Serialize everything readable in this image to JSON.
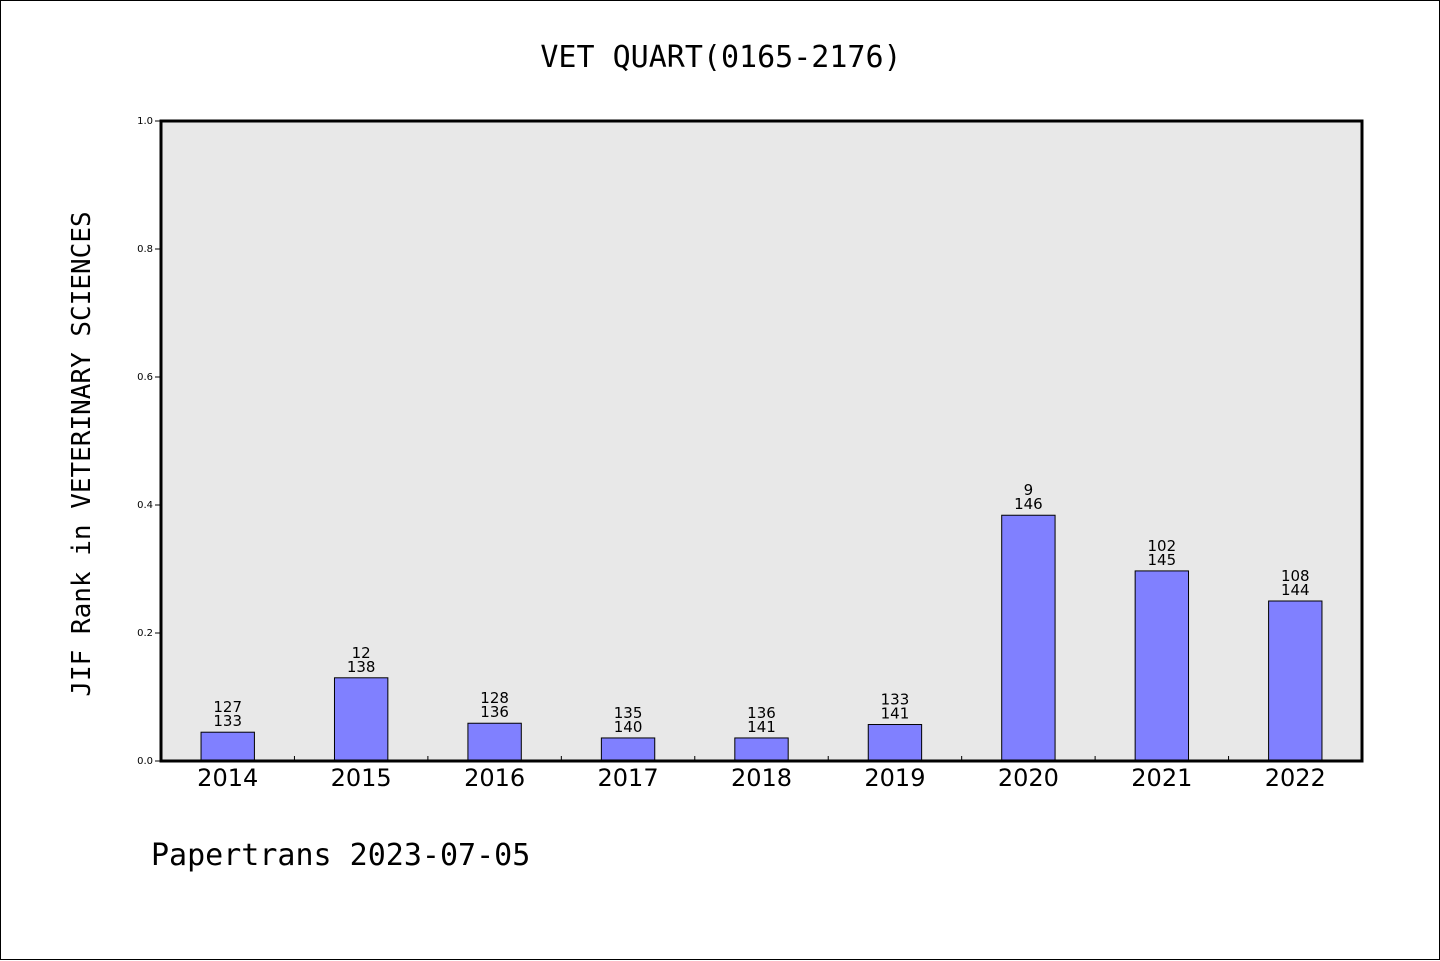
{
  "colors": {
    "bar_fill": "#8080ff",
    "bar_stroke": "#000000",
    "plot_bg": "#e8e8e8",
    "axis": "#000000"
  },
  "chart_data": {
    "type": "bar",
    "title": "VET QUART(0165-2176)",
    "xlabel": "",
    "ylabel": "JIF Rank in VETERINARY SCIENCES",
    "ylim": [
      0,
      1.0
    ],
    "yticks": [
      0.0,
      0.2,
      0.4,
      0.6,
      0.8,
      1.0
    ],
    "ytick_labels": [
      "0.0",
      "0.2",
      "0.4",
      "0.6",
      "0.8",
      "1.0"
    ],
    "grid": false,
    "categories": [
      "2014",
      "2015",
      "2016",
      "2017",
      "2018",
      "2019",
      "2020",
      "2021",
      "2022"
    ],
    "values": [
      0.045,
      0.13,
      0.059,
      0.036,
      0.036,
      0.057,
      0.384,
      0.297,
      0.25
    ],
    "rank_labels": [
      "127",
      "12",
      "128",
      "135",
      "136",
      "133",
      "9",
      "102",
      "108"
    ],
    "total_labels": [
      "133",
      "138",
      "136",
      "140",
      "141",
      "141",
      "146",
      "145",
      "144"
    ]
  },
  "footer": {
    "text": "Papertrans 2023-07-05"
  }
}
